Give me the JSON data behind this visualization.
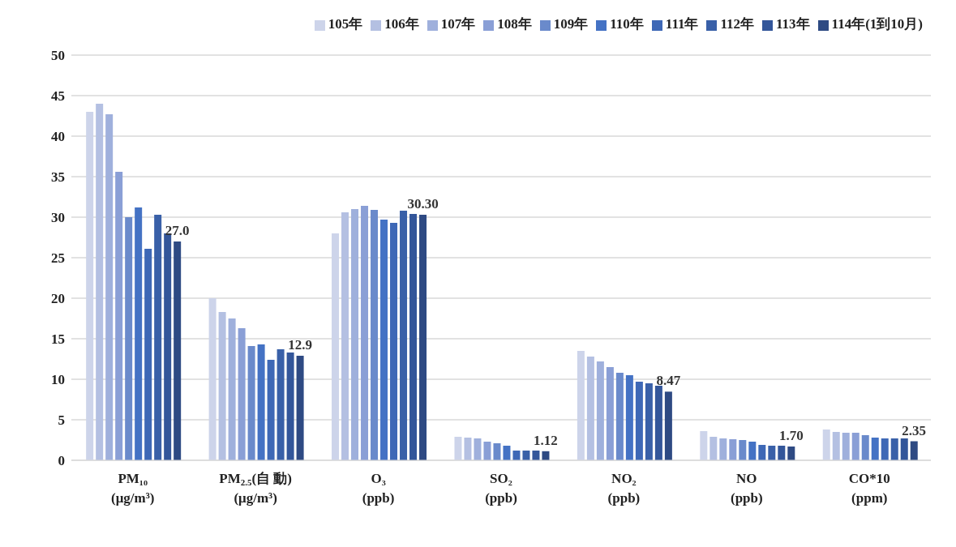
{
  "chart_data": {
    "type": "bar",
    "categories": [
      "PM₁₀\n(μg/m³)",
      "PM$_{2.5}$(自 動)\n(μg/m³)",
      "O₃\n(ppb)",
      "SO₂\n(ppb)",
      "NO₂\n(ppb)",
      "NO\n(ppb)",
      "CO*10\n(ppm)"
    ],
    "series": [
      {
        "name": "105年",
        "color": "#cdd4ea",
        "values": [
          43.0,
          20.0,
          28.0,
          2.9,
          13.5,
          3.6,
          3.8
        ]
      },
      {
        "name": "106年",
        "color": "#b4c0e2",
        "values": [
          44.0,
          18.3,
          30.6,
          2.8,
          12.8,
          2.9,
          3.5
        ]
      },
      {
        "name": "107年",
        "color": "#9fb0dc",
        "values": [
          42.7,
          17.5,
          31.0,
          2.7,
          12.2,
          2.7,
          3.4
        ]
      },
      {
        "name": "108年",
        "color": "#8a9fd6",
        "values": [
          35.6,
          16.3,
          31.4,
          2.3,
          11.5,
          2.6,
          3.4
        ]
      },
      {
        "name": "109年",
        "color": "#6a8acb",
        "values": [
          30.0,
          14.1,
          30.9,
          2.1,
          10.8,
          2.5,
          3.1
        ]
      },
      {
        "name": "110年",
        "color": "#4472c4",
        "values": [
          31.2,
          14.3,
          29.7,
          1.8,
          10.5,
          2.3,
          2.8
        ]
      },
      {
        "name": "111年",
        "color": "#3e68b6",
        "values": [
          26.1,
          12.4,
          29.3,
          1.2,
          9.7,
          1.9,
          2.7
        ]
      },
      {
        "name": "112年",
        "color": "#3960a8",
        "values": [
          30.3,
          13.7,
          30.8,
          1.2,
          9.5,
          1.8,
          2.7
        ]
      },
      {
        "name": "113年",
        "color": "#33569a",
        "values": [
          28.0,
          13.3,
          30.4,
          1.2,
          9.2,
          1.8,
          2.7
        ]
      },
      {
        "name": "114年(1到10月)",
        "color": "#2e4a83",
        "values": [
          27.0,
          12.9,
          30.3,
          1.12,
          8.47,
          1.7,
          2.35
        ],
        "value_labels": [
          "27.0",
          "12.9",
          "30.30",
          "1.12",
          "8.47",
          "1.70",
          "2.35"
        ]
      }
    ],
    "ylim": [
      0,
      50
    ],
    "yticks": [
      0,
      5,
      10,
      15,
      20,
      25,
      30,
      35,
      40,
      45,
      50
    ],
    "grid": "y",
    "legend": "top right"
  }
}
